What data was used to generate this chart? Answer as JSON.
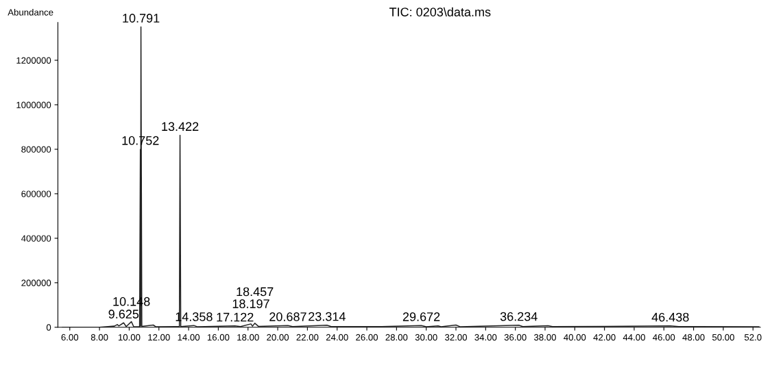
{
  "chart_data": {
    "type": "line",
    "title": "TIC: 0203\\data.ms",
    "ylabel": "Abundance",
    "x": [
      5.5,
      8.0,
      9.0,
      9.2,
      9.3,
      9.625,
      9.8,
      10.148,
      10.3,
      10.7,
      10.752,
      10.77,
      10.791,
      10.85,
      11.623,
      11.8,
      13.38,
      13.422,
      13.47,
      14.358,
      14.6,
      17.122,
      17.5,
      18.197,
      18.3,
      18.457,
      18.7,
      20.687,
      21.0,
      23.314,
      23.6,
      27.0,
      29.672,
      30.0,
      30.8,
      31.0,
      32.0,
      32.3,
      36.234,
      36.5,
      38.2,
      38.5,
      42.0,
      46.438,
      47.0,
      52.4
    ],
    "series": [
      {
        "color": "#222222",
        "values": [
          0,
          0,
          5000,
          12000,
          6000,
          20000,
          3000,
          25000,
          3000,
          2000,
          800000,
          5000,
          1350000,
          4000,
          10000,
          2000,
          3000,
          863000,
          3000,
          8000,
          2000,
          6000,
          3000,
          15000,
          5000,
          18000,
          4000,
          8000,
          3000,
          9000,
          3000,
          3000,
          8000,
          2000,
          6000,
          2000,
          10000,
          2000,
          9000,
          3000,
          7000,
          3000,
          4000,
          6000,
          3000,
          2000
        ]
      }
    ],
    "annotations": [
      {
        "text": "10.791",
        "x": 10.791,
        "y": 1350000
      },
      {
        "text": "13.422",
        "x": 13.422,
        "y": 863000
      },
      {
        "text": "10.752",
        "x": 10.752,
        "y": 800000
      },
      {
        "text": "9.625",
        "x": 9.625,
        "y": 20000
      },
      {
        "text": "10.148",
        "x": 10.148,
        "y": 25000
      },
      {
        "text": "14.358",
        "x": 14.358,
        "y": 8000
      },
      {
        "text": "17.122",
        "x": 17.122,
        "y": 6000
      },
      {
        "text": "18.197",
        "x": 18.197,
        "y": 15000
      },
      {
        "text": "18.457",
        "x": 18.457,
        "y": 18000
      },
      {
        "text": "20.687",
        "x": 20.687,
        "y": 8000
      },
      {
        "text": "23.314",
        "x": 23.314,
        "y": 9000
      },
      {
        "text": "29.672",
        "x": 29.672,
        "y": 8000
      },
      {
        "text": "36.234",
        "x": 36.234,
        "y": 9000
      },
      {
        "text": "46.438",
        "x": 46.438,
        "y": 6000
      }
    ],
    "xlim": [
      5.2,
      52.5
    ],
    "xticks": [
      {
        "value": 6,
        "label": "6.00"
      },
      {
        "value": 8,
        "label": "8.00"
      },
      {
        "value": 10,
        "label": "10.00"
      },
      {
        "value": 12,
        "label": "12.00"
      },
      {
        "value": 14,
        "label": "14.00"
      },
      {
        "value": 16,
        "label": "16.00"
      },
      {
        "value": 18,
        "label": "18.00"
      },
      {
        "value": 20,
        "label": "20.00"
      },
      {
        "value": 22,
        "label": "22.00"
      },
      {
        "value": 24,
        "label": "24.00"
      },
      {
        "value": 26,
        "label": "26.00"
      },
      {
        "value": 28,
        "label": "28.00"
      },
      {
        "value": 30,
        "label": "30.00"
      },
      {
        "value": 32,
        "label": "32.00"
      },
      {
        "value": 34,
        "label": "34.00"
      },
      {
        "value": 36,
        "label": "36.00"
      },
      {
        "value": 38,
        "label": "38.00"
      },
      {
        "value": 40,
        "label": "40.00"
      },
      {
        "value": 42,
        "label": "42.00"
      },
      {
        "value": 44,
        "label": "44.00"
      },
      {
        "value": 46,
        "label": "46.00"
      },
      {
        "value": 48,
        "label": "48.00"
      },
      {
        "value": 50,
        "label": "50.00"
      },
      {
        "value": 52,
        "label": "52.0"
      }
    ],
    "ylim": [
      0,
      1370000
    ],
    "yticks": [
      0,
      200000,
      400000,
      600000,
      800000,
      1000000,
      1200000
    ],
    "grid": false,
    "legend": false,
    "marker": "none",
    "line_style": "solid"
  }
}
